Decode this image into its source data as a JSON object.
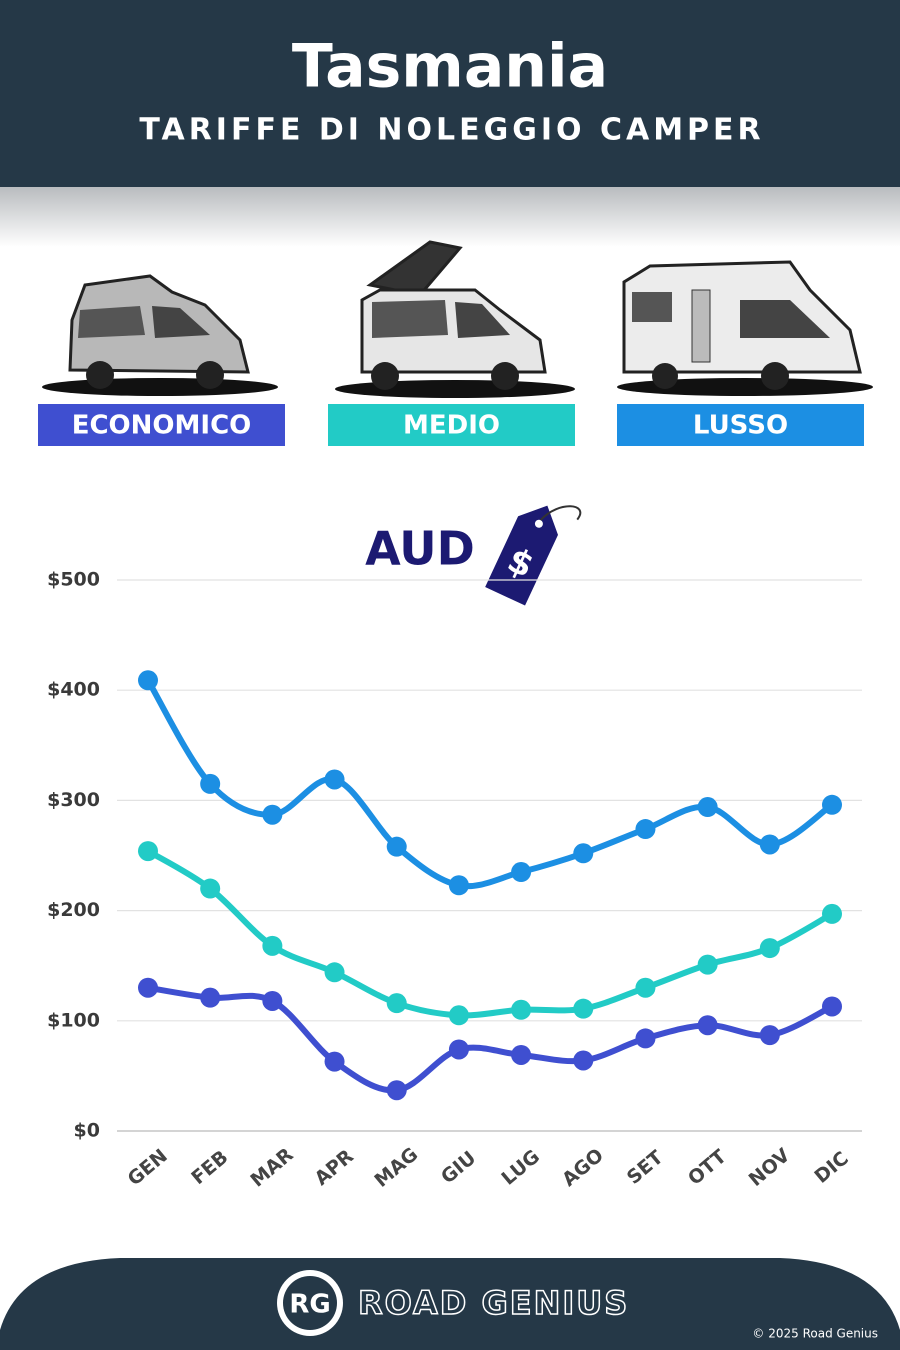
{
  "chart_data": {
    "type": "line",
    "title": "Tasmania",
    "subtitle": "TARIFFE DI NOLEGGIO CAMPER",
    "currency": "AUD",
    "brand": "ROAD GENIUS",
    "copyright": "© 2025 Road Genius",
    "categories": [
      "GEN",
      "FEB",
      "MAR",
      "APR",
      "MAG",
      "GIU",
      "LUG",
      "AGO",
      "SET",
      "OTT",
      "NOV",
      "DIC"
    ],
    "series": [
      {
        "name": "ECONOMICO",
        "color": "#3f4fd0",
        "values": [
          130,
          121,
          118,
          63,
          37,
          74,
          69,
          64,
          84,
          96,
          87,
          113
        ]
      },
      {
        "name": "MEDIO",
        "color": "#22cbc6",
        "values": [
          254,
          220,
          168,
          144,
          116,
          105,
          110,
          111,
          130,
          151,
          166,
          197
        ]
      },
      {
        "name": "LUSSO",
        "color": "#1c8fe3",
        "values": [
          409,
          315,
          287,
          319,
          258,
          223,
          235,
          252,
          274,
          294,
          260,
          296
        ]
      }
    ],
    "ylim": [
      0,
      500
    ],
    "yticks": [
      {
        "value": 0,
        "label": "$0"
      },
      {
        "value": 100,
        "label": "$100"
      },
      {
        "value": 200,
        "label": "$200"
      },
      {
        "value": 300,
        "label": "$300"
      },
      {
        "value": 400,
        "label": "$400"
      },
      {
        "value": 500,
        "label": "$500"
      }
    ],
    "grid": true
  }
}
